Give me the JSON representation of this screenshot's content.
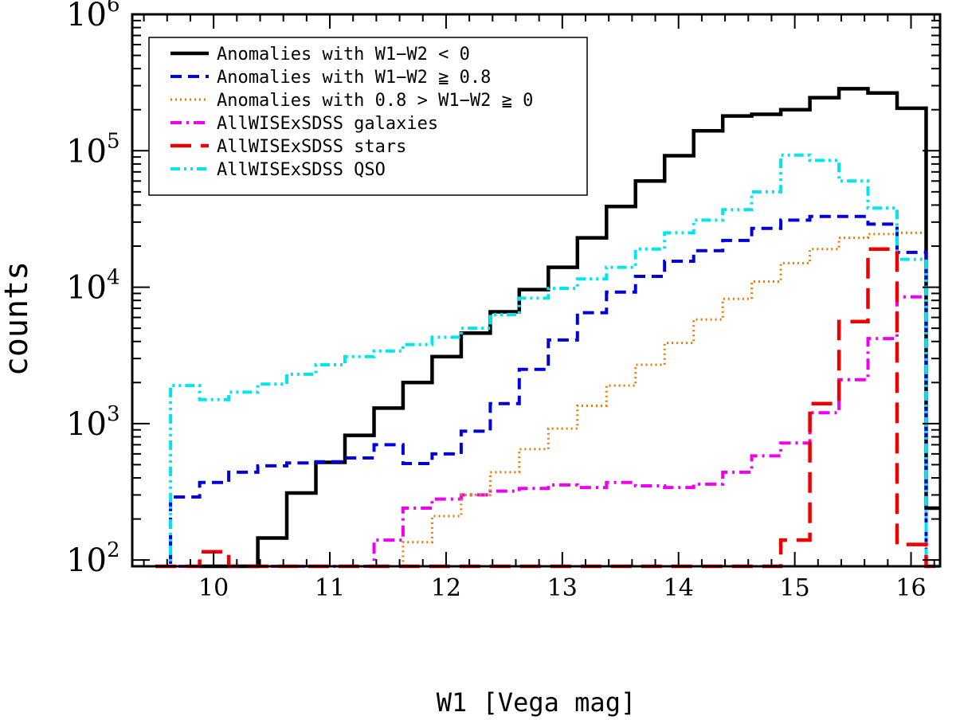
{
  "chart_data": {
    "type": "line",
    "style": "step-histogram",
    "xlabel": "W1 [Vega mag]",
    "ylabel": "counts",
    "xlim": [
      9.3,
      16.25
    ],
    "ylim": [
      90,
      1000000
    ],
    "yscale": "log",
    "xticks": [
      10,
      11,
      12,
      13,
      14,
      15,
      16
    ],
    "xtick_labels": [
      "10",
      "11",
      "12",
      "13",
      "14",
      "15",
      "16"
    ],
    "yticks": [
      {
        "value": 100,
        "base": "10",
        "exp": "2"
      },
      {
        "value": 1000,
        "base": "10",
        "exp": "3"
      },
      {
        "value": 10000,
        "base": "10",
        "exp": "4"
      },
      {
        "value": 100000,
        "base": "10",
        "exp": "5"
      },
      {
        "value": 1000000,
        "base": "10",
        "exp": "6"
      }
    ],
    "legend_position": "top-left",
    "series": [
      {
        "name": "Anomalies with W1−W2 < 0",
        "color": "#000000",
        "dash": "solid",
        "edges": [
          9.88,
          10.13,
          10.38,
          10.63,
          10.88,
          11.13,
          11.38,
          11.63,
          11.88,
          12.13,
          12.38,
          12.63,
          12.88,
          13.13,
          13.38,
          13.63,
          13.88,
          14.13,
          14.38,
          14.63,
          14.88,
          15.13,
          15.38,
          15.63,
          15.88,
          16.13
        ],
        "values": [
          80,
          80,
          145,
          310,
          520,
          820,
          1300,
          2000,
          3100,
          4600,
          6600,
          9600,
          14000,
          23000,
          39000,
          60000,
          92000,
          140000,
          180000,
          185000,
          200000,
          245000,
          285000,
          265000,
          205000
        ],
        "tail_value": 240,
        "tail_end": 16.25
      },
      {
        "name": "Anomalies with W1−W2 ≧ 0.8",
        "color": "#0000dd",
        "dash": "dashed",
        "edges": [
          9.5,
          9.63,
          9.88,
          10.13,
          10.38,
          10.63,
          10.88,
          11.13,
          11.38,
          11.63,
          11.88,
          12.13,
          12.38,
          12.63,
          12.88,
          13.13,
          13.38,
          13.63,
          13.88,
          14.13,
          14.38,
          14.63,
          14.88,
          15.13,
          15.38,
          15.63,
          15.88,
          16.13
        ],
        "values": [
          80,
          290,
          370,
          440,
          490,
          515,
          525,
          560,
          700,
          510,
          600,
          880,
          1400,
          2500,
          4100,
          6500,
          9200,
          12000,
          15500,
          18500,
          22000,
          27000,
          31000,
          33000,
          33000,
          29000,
          18000
        ],
        "tail_value": 80,
        "tail_end": 16.25
      },
      {
        "name": "Anomalies with 0.8 > W1−W2 ≧ 0",
        "color": "#ee7700",
        "dash": "dotted",
        "edges": [
          11.38,
          11.63,
          11.88,
          12.13,
          12.38,
          12.63,
          12.88,
          13.13,
          13.38,
          13.63,
          13.88,
          14.13,
          14.38,
          14.63,
          14.88,
          15.13,
          15.38,
          15.63,
          15.88,
          16.13
        ],
        "values": [
          80,
          135,
          210,
          300,
          440,
          650,
          920,
          1350,
          1900,
          2700,
          3900,
          5800,
          8200,
          11000,
          15000,
          19000,
          23000,
          24500,
          25000
        ],
        "tail_value": 80,
        "tail_end": 16.25
      },
      {
        "name": "AllWISExSDSS galaxies",
        "color": "#ee00ee",
        "dash": "dashdot",
        "edges": [
          9.5,
          9.63,
          9.88,
          10.13,
          10.38,
          10.63,
          10.88,
          11.13,
          11.38,
          11.63,
          11.88,
          12.13,
          12.38,
          12.63,
          12.88,
          13.13,
          13.38,
          13.63,
          13.88,
          14.13,
          14.38,
          14.63,
          14.88,
          15.13,
          15.38,
          15.63,
          15.88,
          16.13
        ],
        "values": [
          80,
          80,
          80,
          80,
          80,
          80,
          80,
          80,
          140,
          240,
          280,
          300,
          320,
          335,
          355,
          340,
          370,
          350,
          340,
          360,
          440,
          580,
          720,
          1200,
          2100,
          4200,
          8500
        ],
        "tail_value": 80,
        "tail_end": 16.25
      },
      {
        "name": "AllWISExSDSS stars",
        "color": "#ee0000",
        "dash": "longdash",
        "edges": [
          9.5,
          9.88,
          10.13,
          10.38,
          10.63,
          10.88,
          11.13,
          11.38,
          11.63,
          11.88,
          12.13,
          12.38,
          12.63,
          12.88,
          13.13,
          13.38,
          13.63,
          13.88,
          14.13,
          14.38,
          14.63,
          14.88,
          15.13,
          15.38,
          15.63,
          15.88,
          16.13
        ],
        "values": [
          80,
          115,
          80,
          80,
          80,
          80,
          80,
          80,
          80,
          80,
          80,
          80,
          80,
          80,
          80,
          80,
          80,
          80,
          80,
          80,
          80,
          140,
          1400,
          5600,
          19000,
          130
        ],
        "tail_value": 80,
        "tail_end": 16.25
      },
      {
        "name": "AllWISExSDSS QSO",
        "color": "#00e5ee",
        "dash": "dashdotdot",
        "edges": [
          9.5,
          9.63,
          9.88,
          10.13,
          10.38,
          10.63,
          10.88,
          11.13,
          11.38,
          11.63,
          11.88,
          12.13,
          12.38,
          12.63,
          12.88,
          13.13,
          13.38,
          13.63,
          13.88,
          14.13,
          14.38,
          14.63,
          14.88,
          15.13,
          15.38,
          15.63,
          15.88,
          16.13
        ],
        "values": [
          80,
          1900,
          1500,
          1700,
          1950,
          2300,
          2700,
          3100,
          3400,
          3800,
          4300,
          5000,
          6300,
          8300,
          9800,
          11500,
          14000,
          19000,
          25000,
          31000,
          37000,
          50000,
          93000,
          85000,
          60000,
          38000,
          16000
        ],
        "tail_value": 80,
        "tail_end": 16.25
      }
    ]
  }
}
